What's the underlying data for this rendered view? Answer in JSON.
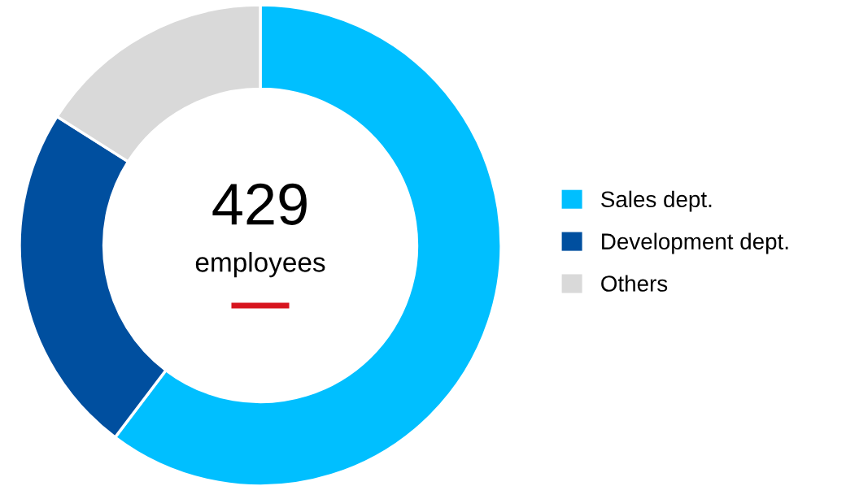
{
  "chart_data": {
    "type": "donut",
    "categories": [
      "Sales dept.",
      "Development dept.",
      "Others"
    ],
    "values": [
      60.3,
      23.7,
      16.0
    ],
    "colors": [
      "#00bfff",
      "#004f9f",
      "#d9d9d9"
    ],
    "annotations": [
      "429",
      "employees"
    ],
    "legend": "right"
  }
}
